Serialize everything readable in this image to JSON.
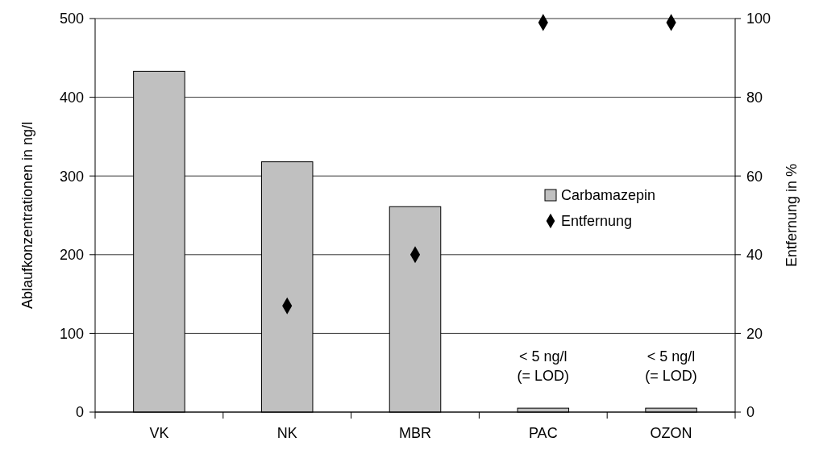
{
  "chart_data": {
    "type": "bar",
    "categories": [
      "VK",
      "NK",
      "MBR",
      "PAC",
      "OZON"
    ],
    "series": [
      {
        "name": "Carbamazepin",
        "color": "#c0c0c0",
        "values": [
          433,
          318,
          261,
          5,
          5
        ]
      },
      {
        "name": "Entfernung",
        "type": "scatter",
        "axis": "y2",
        "color": "#000000",
        "marker": "diamond",
        "values": [
          null,
          27,
          40,
          99,
          99
        ]
      }
    ],
    "ylabel": "Ablaufkonzentrationen in ng/l",
    "y2label": "Entfernung in %",
    "ylim": [
      0,
      500
    ],
    "yticks": [
      0,
      100,
      200,
      300,
      400,
      500
    ],
    "y2lim": [
      0,
      100
    ],
    "y2ticks": [
      0,
      20,
      40,
      60,
      80,
      100
    ],
    "grid": "y",
    "legend": "right",
    "annotations": [
      {
        "text": "< 5 ng/l\n(= LOD)",
        "x": "PAC",
        "y": 5
      },
      {
        "text": "< 5 ng/l\n(= LOD)",
        "x": "OZON",
        "y": 5
      }
    ]
  }
}
